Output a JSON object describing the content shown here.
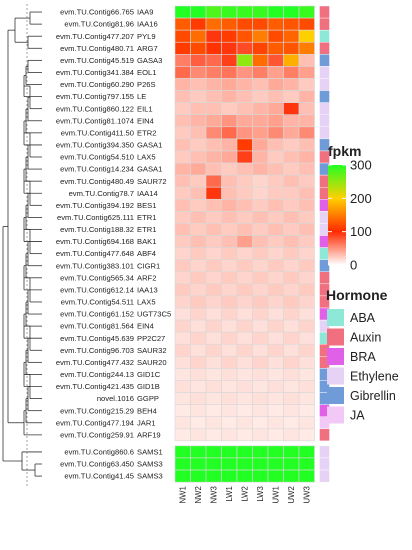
{
  "chart_data": {
    "type": "heatmap",
    "columns": [
      "NW1",
      "NW2",
      "NW3",
      "LW1",
      "LW2",
      "LW3",
      "UW1",
      "UW2",
      "UW3"
    ],
    "rows": [
      {
        "id": "evm.TU.Contig66.765",
        "gene": "IAA9",
        "hormone": "Auxin",
        "values": [
          300,
          300,
          280,
          290,
          290,
          290,
          300,
          300,
          290
        ]
      },
      {
        "id": "evm.TU.Contig81.96",
        "gene": "IAA16",
        "hormone": "Auxin",
        "values": [
          130,
          110,
          140,
          130,
          120,
          120,
          130,
          125,
          120
        ]
      },
      {
        "id": "evm.TU.Contig477.207",
        "gene": "PYL9",
        "hormone": "ABA",
        "values": [
          120,
          140,
          95,
          110,
          125,
          150,
          120,
          135,
          200
        ]
      },
      {
        "id": "evm.TU.Contig480.71",
        "gene": "ARG7",
        "hormone": "Auxin",
        "values": [
          110,
          120,
          105,
          95,
          85,
          115,
          130,
          125,
          150
        ]
      },
      {
        "id": "evm.TU.Contig45.519",
        "gene": "GASA3",
        "hormone": "Gibrellin",
        "values": [
          60,
          75,
          70,
          90,
          250,
          140,
          80,
          180,
          30
        ]
      },
      {
        "id": "evm.TU.Contig341.384",
        "gene": "EOL1",
        "hormone": "Ethylene",
        "values": [
          70,
          55,
          60,
          65,
          50,
          60,
          45,
          60,
          45
        ]
      },
      {
        "id": "evm.TU.Contig60.290",
        "gene": "P26S",
        "hormone": "Ethylene",
        "values": [
          35,
          30,
          35,
          40,
          35,
          30,
          40,
          35,
          25
        ]
      },
      {
        "id": "evm.TU.Contig797.155",
        "gene": "LE",
        "hormone": "Gibrellin",
        "values": [
          30,
          25,
          30,
          35,
          30,
          25,
          30,
          25,
          35
        ]
      },
      {
        "id": "evm.TU.Contig860.122",
        "gene": "EIL1",
        "hormone": "Ethylene",
        "values": [
          25,
          30,
          30,
          25,
          30,
          35,
          40,
          95,
          30
        ]
      },
      {
        "id": "evm.TU.Contig81.1074",
        "gene": "EIN4",
        "hormone": "Ethylene",
        "values": [
          30,
          35,
          40,
          50,
          40,
          40,
          45,
          35,
          35
        ]
      },
      {
        "id": "evm.TU.Contig411.50",
        "gene": "ETR2",
        "hormone": "Ethylene",
        "values": [
          25,
          30,
          55,
          70,
          50,
          45,
          55,
          40,
          55
        ]
      },
      {
        "id": "evm.TU.Contig394.350",
        "gene": "GASA1",
        "hormone": "Gibrellin",
        "values": [
          30,
          25,
          30,
          35,
          110,
          40,
          30,
          25,
          30
        ]
      },
      {
        "id": "evm.TU.Contig54.510",
        "gene": "LAX5",
        "hormone": "Auxin",
        "values": [
          25,
          30,
          35,
          40,
          90,
          35,
          25,
          30,
          35
        ]
      },
      {
        "id": "evm.TU.Contig14.234",
        "gene": "GASA1",
        "hormone": "Gibrellin",
        "values": [
          35,
          40,
          30,
          25,
          30,
          35,
          30,
          25,
          30
        ]
      },
      {
        "id": "evm.TU.Contig480.49",
        "gene": "SAUR72",
        "hormone": "Auxin",
        "values": [
          30,
          25,
          70,
          30,
          25,
          20,
          25,
          30,
          25
        ]
      },
      {
        "id": "evm.TU.Contig78.7",
        "gene": "IAA14",
        "hormone": "Auxin",
        "values": [
          25,
          30,
          95,
          30,
          25,
          20,
          25,
          25,
          30
        ]
      },
      {
        "id": "evm.TU.Contig394.192",
        "gene": "BES1",
        "hormone": "BRA",
        "values": [
          30,
          25,
          30,
          35,
          30,
          25,
          30,
          25,
          30
        ]
      },
      {
        "id": "evm.TU.Contig625.111",
        "gene": "ETR1",
        "hormone": "Ethylene",
        "values": [
          25,
          30,
          25,
          30,
          25,
          30,
          25,
          30,
          25
        ]
      },
      {
        "id": "evm.TU.Contig188.32",
        "gene": "ETR1",
        "hormone": "Ethylene",
        "values": [
          30,
          25,
          30,
          25,
          30,
          25,
          30,
          25,
          30
        ]
      },
      {
        "id": "evm.TU.Contig694.168",
        "gene": "BAK1",
        "hormone": "BRA",
        "values": [
          25,
          30,
          25,
          30,
          45,
          30,
          25,
          30,
          25
        ]
      },
      {
        "id": "evm.TU.Contig477.648",
        "gene": "ABF4",
        "hormone": "ABA",
        "values": [
          20,
          25,
          20,
          25,
          20,
          25,
          20,
          25,
          20
        ]
      },
      {
        "id": "evm.TU.Contig383.101",
        "gene": "CIGR1",
        "hormone": "Gibrellin",
        "values": [
          25,
          20,
          25,
          20,
          25,
          20,
          25,
          20,
          25
        ]
      },
      {
        "id": "evm.TU.Contig565.34",
        "gene": "ARF2",
        "hormone": "Auxin",
        "values": [
          20,
          25,
          20,
          25,
          20,
          25,
          20,
          25,
          20
        ]
      },
      {
        "id": "evm.TU.Contig612.14",
        "gene": "IAA13",
        "hormone": "Auxin",
        "values": [
          25,
          20,
          25,
          20,
          25,
          20,
          25,
          20,
          25
        ]
      },
      {
        "id": "evm.TU.Contig54.511",
        "gene": "LAX5",
        "hormone": "Auxin",
        "values": [
          20,
          25,
          20,
          25,
          20,
          25,
          20,
          25,
          20
        ]
      },
      {
        "id": "evm.TU.Contig61.152",
        "gene": "UGT73C5",
        "hormone": "BRA",
        "values": [
          15,
          20,
          15,
          20,
          15,
          20,
          15,
          20,
          15
        ]
      },
      {
        "id": "evm.TU.Contig81.564",
        "gene": "EIN4",
        "hormone": "Ethylene",
        "values": [
          20,
          15,
          20,
          15,
          20,
          15,
          20,
          15,
          20
        ]
      },
      {
        "id": "evm.TU.Contig45.639",
        "gene": "PP2C27",
        "hormone": "ABA",
        "values": [
          15,
          20,
          15,
          20,
          15,
          20,
          15,
          20,
          15
        ]
      },
      {
        "id": "evm.TU.Contig96.703",
        "gene": "SAUR32",
        "hormone": "Auxin",
        "values": [
          20,
          15,
          20,
          15,
          20,
          15,
          20,
          15,
          20
        ]
      },
      {
        "id": "evm.TU.Contig477.432",
        "gene": "SAUR20",
        "hormone": "Auxin",
        "values": [
          15,
          20,
          15,
          20,
          15,
          20,
          15,
          20,
          15
        ]
      },
      {
        "id": "evm.TU.Contig244.13",
        "gene": "GID1C",
        "hormone": "Gibrellin",
        "values": [
          12,
          15,
          12,
          15,
          12,
          15,
          12,
          15,
          12
        ]
      },
      {
        "id": "evm.TU.Contig421.435",
        "gene": "GID1B",
        "hormone": "Gibrellin",
        "values": [
          15,
          12,
          15,
          12,
          15,
          12,
          15,
          12,
          15
        ]
      },
      {
        "id": "novel.1016",
        "gene": "GGPP",
        "hormone": "Gibrellin",
        "values": [
          12,
          15,
          12,
          15,
          12,
          15,
          12,
          15,
          12
        ]
      },
      {
        "id": "evm.TU.Contig215.29",
        "gene": "BEH4",
        "hormone": "BRA",
        "values": [
          10,
          12,
          10,
          12,
          10,
          12,
          10,
          12,
          10
        ]
      },
      {
        "id": "evm.TU.Contig477.194",
        "gene": "JAR1",
        "hormone": "JA",
        "values": [
          12,
          10,
          12,
          10,
          12,
          10,
          12,
          10,
          12
        ]
      },
      {
        "id": "evm.TU.Contig259.91",
        "gene": "ARF19",
        "hormone": "Auxin",
        "values": [
          10,
          12,
          10,
          12,
          10,
          12,
          10,
          12,
          10
        ]
      },
      {
        "id": "evm.TU.Contig860.6",
        "gene": "SAMS1",
        "hormone": "Ethylene",
        "values": [
          300,
          300,
          300,
          300,
          300,
          300,
          300,
          300,
          300
        ]
      },
      {
        "id": "evm.TU.Contig63.450",
        "gene": "SAMS3",
        "hormone": "Ethylene",
        "values": [
          300,
          300,
          300,
          300,
          300,
          300,
          300,
          300,
          300
        ]
      },
      {
        "id": "evm.TU.Contig41.45",
        "gene": "SAMS3",
        "hormone": "Ethylene",
        "values": [
          300,
          300,
          300,
          300,
          300,
          300,
          300,
          300,
          300
        ]
      }
    ],
    "color_scale": {
      "title": "fpkm",
      "range": [
        0,
        300
      ],
      "ticks": [
        0,
        100,
        200,
        300
      ],
      "stops": [
        {
          "value": 0,
          "color": "#ffffff"
        },
        {
          "value": 100,
          "color": "#ff2a00"
        },
        {
          "value": 200,
          "color": "#ffd000"
        },
        {
          "value": 300,
          "color": "#22ff22"
        }
      ]
    },
    "hormone_legend": {
      "title": "Hormone",
      "items": [
        {
          "label": "ABA",
          "color": "#8ee8d8"
        },
        {
          "label": "Auxin",
          "color": "#f07080"
        },
        {
          "label": "BRA",
          "color": "#e060e8"
        },
        {
          "label": "Ethylene",
          "color": "#e6d2f4"
        },
        {
          "label": "Gibrellin",
          "color": "#6f9bd8"
        },
        {
          "label": "JA",
          "color": "#f2c8f6"
        }
      ]
    }
  }
}
